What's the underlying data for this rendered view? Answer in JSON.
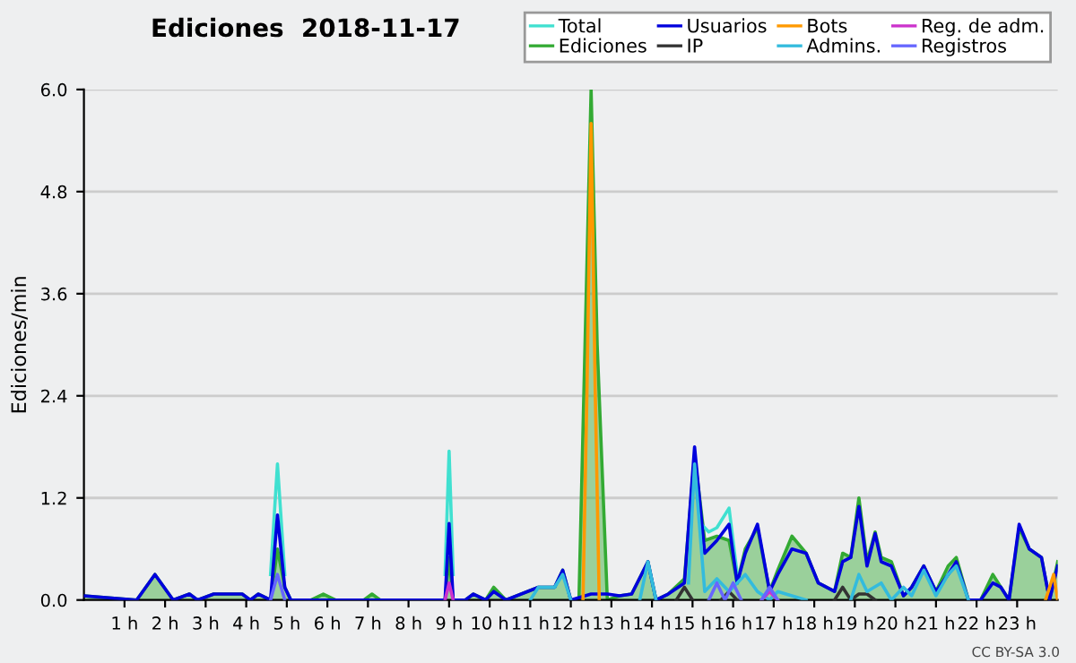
{
  "chart_data": {
    "type": "line",
    "title": "Ediciones  2018-11-17",
    "ylabel": "Ediciones/min",
    "xlim": [
      0,
      24
    ],
    "xticks": [
      {
        "value": 1,
        "label": "1 h"
      },
      {
        "value": 2,
        "label": "2 h"
      },
      {
        "value": 3,
        "label": "3 h"
      },
      {
        "value": 4,
        "label": "4 h"
      },
      {
        "value": 5,
        "label": "5 h"
      },
      {
        "value": 6,
        "label": "6 h"
      },
      {
        "value": 7,
        "label": "7 h"
      },
      {
        "value": 8,
        "label": "8 h"
      },
      {
        "value": 9,
        "label": "9 h"
      },
      {
        "value": 10,
        "label": "10 h"
      },
      {
        "value": 11,
        "label": "11 h"
      },
      {
        "value": 12,
        "label": "12 h"
      },
      {
        "value": 13,
        "label": "13 h"
      },
      {
        "value": 14,
        "label": "14 h"
      },
      {
        "value": 15,
        "label": "15 h"
      },
      {
        "value": 16,
        "label": "16 h"
      },
      {
        "value": 17,
        "label": "17 h"
      },
      {
        "value": 18,
        "label": "18 h"
      },
      {
        "value": 19,
        "label": "19 h"
      },
      {
        "value": 20,
        "label": "20 h"
      },
      {
        "value": 21,
        "label": "21 h"
      },
      {
        "value": 22,
        "label": "22 h"
      },
      {
        "value": 23,
        "label": "23 h"
      }
    ],
    "ylim": [
      0,
      6
    ],
    "yticks": [
      {
        "value": 0,
        "label": "0.0"
      },
      1.2,
      2.4,
      3.6,
      4.8,
      {
        "value": 6,
        "label": "6.0"
      }
    ],
    "grid": "y",
    "legend": "top right",
    "marker": "none",
    "annotations": [
      "CC BY-SA 3.0"
    ],
    "series": [
      {
        "name": "Total",
        "color": "#40e0d0",
        "x": [
          4.6,
          4.77,
          4.95,
          6.0,
          8.9,
          9.0,
          9.1,
          12.0,
          15.2,
          15.4,
          15.6,
          15.9,
          16.1
        ],
        "values": [
          0.3,
          1.6,
          0.3,
          null,
          0.3,
          1.75,
          0.3,
          null,
          0.9,
          0.8,
          0.85,
          1.08,
          0.3
        ]
      },
      {
        "name": "Ediciones",
        "color": "#33aa33",
        "type": "area",
        "x": [
          0,
          1.3,
          1.75,
          2.2,
          2.6,
          2.8,
          3.2,
          3.9,
          4.1,
          4.3,
          4.6,
          4.77,
          4.95,
          5.1,
          5.6,
          5.9,
          6.2,
          6.9,
          7.1,
          7.3,
          8.9,
          9.0,
          9.1,
          9.4,
          9.6,
          9.9,
          10.1,
          10.4,
          11.2,
          11.6,
          11.8,
          12.0,
          12.2,
          12.35,
          12.5,
          12.65,
          12.9,
          13.2,
          13.5,
          13.9,
          14.1,
          14.4,
          14.8,
          15.05,
          15.3,
          15.6,
          15.9,
          16.1,
          16.3,
          16.6,
          16.9,
          17.1,
          17.45,
          17.8,
          18.1,
          18.5,
          18.7,
          18.9,
          19.1,
          19.3,
          19.5,
          19.65,
          19.9,
          20.2,
          20.4,
          20.7,
          21.0,
          21.3,
          21.5,
          21.8,
          22.1,
          22.4,
          22.6,
          22.8,
          23.05,
          23.3,
          23.6,
          23.8,
          24
        ],
        "values": [
          0.05,
          0,
          0.3,
          0,
          0.07,
          0,
          0.07,
          0.07,
          0,
          0.07,
          0,
          0.6,
          0.15,
          0,
          0,
          0.07,
          0,
          0,
          0.07,
          0,
          0,
          0.5,
          0,
          0,
          0.07,
          0,
          0.15,
          0,
          0.15,
          0.15,
          0.35,
          0,
          0,
          3.0,
          6.0,
          3.0,
          0,
          0.05,
          0.07,
          0.45,
          0,
          0.07,
          0.25,
          1.7,
          0.7,
          0.75,
          0.7,
          0.2,
          0.6,
          0.85,
          0.1,
          0.35,
          0.75,
          0.55,
          0.2,
          0.1,
          0.55,
          0.5,
          1.2,
          0.45,
          0.8,
          0.5,
          0.45,
          0.05,
          0.15,
          0.4,
          0.1,
          0.4,
          0.5,
          0,
          0,
          0.3,
          0.15,
          0,
          0.85,
          0.6,
          0.5,
          0,
          0.45
        ]
      },
      {
        "name": "Usuarios",
        "color": "#0000dd",
        "x": [
          0,
          1.3,
          1.75,
          2.2,
          2.6,
          2.8,
          3.2,
          3.9,
          4.1,
          4.3,
          4.6,
          4.77,
          4.95,
          5.1,
          8.9,
          9.0,
          9.1,
          9.4,
          9.6,
          9.9,
          10.1,
          10.4,
          11.2,
          11.6,
          11.8,
          12.0,
          12.5,
          12.9,
          13.2,
          13.5,
          13.9,
          14.1,
          14.4,
          14.8,
          15.05,
          15.3,
          15.6,
          15.9,
          16.1,
          16.3,
          16.6,
          16.9,
          17.1,
          17.45,
          17.8,
          18.1,
          18.5,
          18.7,
          18.9,
          19.1,
          19.3,
          19.5,
          19.65,
          19.9,
          20.2,
          20.4,
          20.7,
          21.0,
          21.3,
          21.5,
          21.8,
          22.1,
          22.4,
          22.6,
          22.8,
          23.05,
          23.3,
          23.6,
          23.8,
          24
        ],
        "values": [
          0.05,
          0,
          0.3,
          0,
          0.07,
          0,
          0.07,
          0.07,
          0,
          0.07,
          0,
          1.0,
          0.15,
          0,
          0,
          0.9,
          0,
          0,
          0.07,
          0,
          0.1,
          0,
          0.15,
          0.15,
          0.35,
          0,
          0.07,
          0.07,
          0.05,
          0.07,
          0.45,
          0,
          0.07,
          0.2,
          1.8,
          0.55,
          0.7,
          0.89,
          0.2,
          0.55,
          0.89,
          0.1,
          0.3,
          0.6,
          0.55,
          0.2,
          0.1,
          0.45,
          0.5,
          1.1,
          0.4,
          0.78,
          0.45,
          0.4,
          0.05,
          0.15,
          0.4,
          0.1,
          0.3,
          0.45,
          0,
          0,
          0.2,
          0.15,
          0,
          0.89,
          0.6,
          0.5,
          0,
          0.4
        ]
      },
      {
        "name": "IP",
        "color": "#333333",
        "x": [
          14.6,
          14.8,
          15.0,
          15.3,
          15.7,
          15.9,
          16.1,
          16.5,
          18.5,
          18.7,
          18.9,
          19.1,
          19.3,
          19.5
        ],
        "values": [
          0,
          0.15,
          0,
          null,
          0,
          0.1,
          0,
          null,
          0,
          0.15,
          0,
          0.07,
          0.07,
          0
        ]
      },
      {
        "name": "Bots",
        "color": "#ff9900",
        "x": [
          12.3,
          12.4,
          12.5,
          12.6,
          12.7,
          18.0,
          23.7,
          23.9,
          24
        ],
        "values": [
          0,
          2.5,
          5.6,
          2.5,
          0,
          null,
          0,
          0.3,
          0
        ]
      },
      {
        "name": "Admins.",
        "color": "#33bbdd",
        "x": [
          11.0,
          11.2,
          11.6,
          11.8,
          12.0,
          13.0,
          13.7,
          13.9,
          14.1,
          14.5,
          14.9,
          15.05,
          15.3,
          15.6,
          15.9,
          16.1,
          16.3,
          16.6,
          16.9,
          17.1,
          17.45,
          17.8,
          18.3,
          18.9,
          19.1,
          19.3,
          19.65,
          19.9,
          20.2,
          20.4,
          20.7,
          21.0,
          21.3,
          21.5,
          21.8
        ],
        "values": [
          0,
          0.15,
          0.15,
          0.3,
          0,
          null,
          0,
          0.45,
          0,
          null,
          0.2,
          1.6,
          0.1,
          0.25,
          0.1,
          0.2,
          0.3,
          0.1,
          0,
          0.1,
          0.05,
          0,
          null,
          0,
          0.3,
          0.1,
          0.2,
          0,
          0.15,
          0.05,
          0.35,
          0.05,
          0.3,
          0.4,
          0
        ]
      },
      {
        "name": "Reg. de adm.",
        "color": "#cc33cc",
        "x": [
          8.9,
          9.0,
          9.1,
          12.0,
          16.7,
          16.9,
          17.1
        ],
        "values": [
          0,
          0.2,
          0,
          null,
          0,
          0.1,
          0
        ]
      },
      {
        "name": "Registros",
        "color": "#6666ff",
        "x": [
          4.6,
          4.77,
          4.95,
          12.0,
          15.4,
          15.6,
          15.8,
          16.0,
          16.2,
          16.5,
          16.7,
          16.9,
          17.1
        ],
        "values": [
          0,
          0.3,
          0,
          null,
          0,
          0.2,
          0,
          0.2,
          0,
          null,
          0,
          0.15,
          0
        ]
      }
    ]
  }
}
